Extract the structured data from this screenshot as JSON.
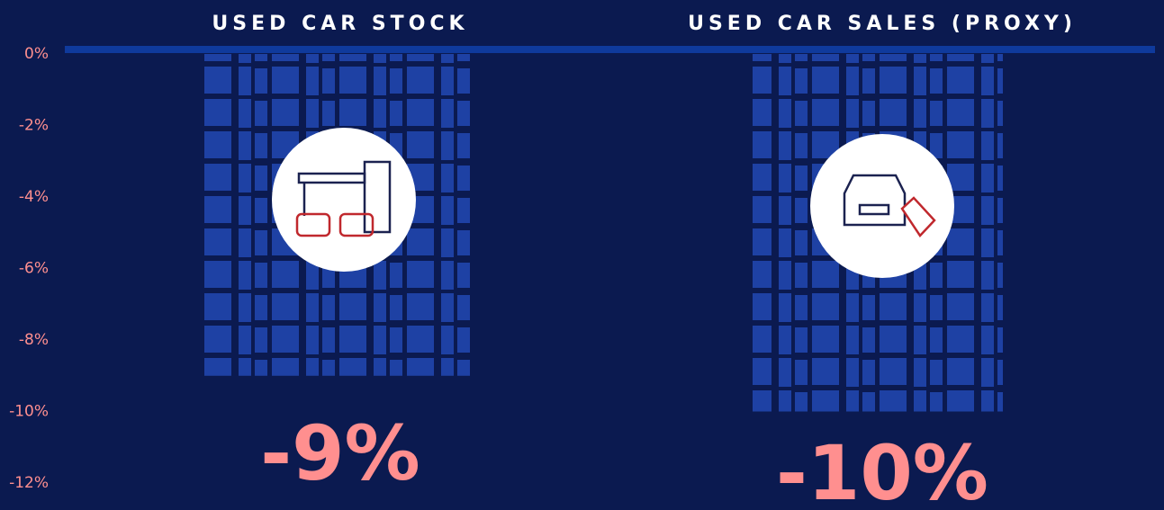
{
  "chart_data": {
    "type": "bar",
    "categories": [
      "USED CAR STOCK",
      "USED CAR SALES (PROXY)"
    ],
    "values": [
      -9,
      -10
    ],
    "value_labels": [
      "-9%",
      "-10%"
    ],
    "color": "#1f43a8",
    "ylim": [
      0,
      -12
    ],
    "yticks": [
      {
        "value": 0,
        "label": "0%"
      },
      {
        "value": -2,
        "label": "-2%"
      },
      {
        "value": -4,
        "label": "-4%"
      },
      {
        "value": -6,
        "label": "-6%"
      },
      {
        "value": -8,
        "label": "-8%"
      },
      {
        "value": -10,
        "label": "-10%"
      },
      {
        "value": -12,
        "label": "-12%"
      }
    ],
    "grid": false
  }
}
